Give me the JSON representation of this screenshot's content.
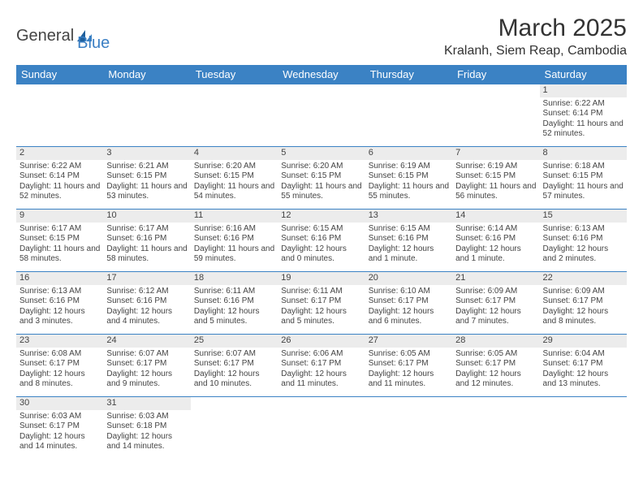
{
  "brand": {
    "general": "General",
    "blue": "Blue"
  },
  "title": "March 2025",
  "location": "Kralanh, Siem Reap, Cambodia",
  "colors": {
    "header_bg": "#3b82c4",
    "header_text": "#ffffff",
    "daynum_bg": "#ececec",
    "cell_border": "#3b82c4",
    "text": "#444444",
    "page_bg": "#ffffff"
  },
  "day_headers": [
    "Sunday",
    "Monday",
    "Tuesday",
    "Wednesday",
    "Thursday",
    "Friday",
    "Saturday"
  ],
  "weeks": [
    [
      null,
      null,
      null,
      null,
      null,
      null,
      {
        "n": "1",
        "sr": "6:22 AM",
        "ss": "6:14 PM",
        "dl": "11 hours and 52 minutes."
      }
    ],
    [
      {
        "n": "2",
        "sr": "6:22 AM",
        "ss": "6:14 PM",
        "dl": "11 hours and 52 minutes."
      },
      {
        "n": "3",
        "sr": "6:21 AM",
        "ss": "6:15 PM",
        "dl": "11 hours and 53 minutes."
      },
      {
        "n": "4",
        "sr": "6:20 AM",
        "ss": "6:15 PM",
        "dl": "11 hours and 54 minutes."
      },
      {
        "n": "5",
        "sr": "6:20 AM",
        "ss": "6:15 PM",
        "dl": "11 hours and 55 minutes."
      },
      {
        "n": "6",
        "sr": "6:19 AM",
        "ss": "6:15 PM",
        "dl": "11 hours and 55 minutes."
      },
      {
        "n": "7",
        "sr": "6:19 AM",
        "ss": "6:15 PM",
        "dl": "11 hours and 56 minutes."
      },
      {
        "n": "8",
        "sr": "6:18 AM",
        "ss": "6:15 PM",
        "dl": "11 hours and 57 minutes."
      }
    ],
    [
      {
        "n": "9",
        "sr": "6:17 AM",
        "ss": "6:15 PM",
        "dl": "11 hours and 58 minutes."
      },
      {
        "n": "10",
        "sr": "6:17 AM",
        "ss": "6:16 PM",
        "dl": "11 hours and 58 minutes."
      },
      {
        "n": "11",
        "sr": "6:16 AM",
        "ss": "6:16 PM",
        "dl": "11 hours and 59 minutes."
      },
      {
        "n": "12",
        "sr": "6:15 AM",
        "ss": "6:16 PM",
        "dl": "12 hours and 0 minutes."
      },
      {
        "n": "13",
        "sr": "6:15 AM",
        "ss": "6:16 PM",
        "dl": "12 hours and 1 minute."
      },
      {
        "n": "14",
        "sr": "6:14 AM",
        "ss": "6:16 PM",
        "dl": "12 hours and 1 minute."
      },
      {
        "n": "15",
        "sr": "6:13 AM",
        "ss": "6:16 PM",
        "dl": "12 hours and 2 minutes."
      }
    ],
    [
      {
        "n": "16",
        "sr": "6:13 AM",
        "ss": "6:16 PM",
        "dl": "12 hours and 3 minutes."
      },
      {
        "n": "17",
        "sr": "6:12 AM",
        "ss": "6:16 PM",
        "dl": "12 hours and 4 minutes."
      },
      {
        "n": "18",
        "sr": "6:11 AM",
        "ss": "6:16 PM",
        "dl": "12 hours and 5 minutes."
      },
      {
        "n": "19",
        "sr": "6:11 AM",
        "ss": "6:17 PM",
        "dl": "12 hours and 5 minutes."
      },
      {
        "n": "20",
        "sr": "6:10 AM",
        "ss": "6:17 PM",
        "dl": "12 hours and 6 minutes."
      },
      {
        "n": "21",
        "sr": "6:09 AM",
        "ss": "6:17 PM",
        "dl": "12 hours and 7 minutes."
      },
      {
        "n": "22",
        "sr": "6:09 AM",
        "ss": "6:17 PM",
        "dl": "12 hours and 8 minutes."
      }
    ],
    [
      {
        "n": "23",
        "sr": "6:08 AM",
        "ss": "6:17 PM",
        "dl": "12 hours and 8 minutes."
      },
      {
        "n": "24",
        "sr": "6:07 AM",
        "ss": "6:17 PM",
        "dl": "12 hours and 9 minutes."
      },
      {
        "n": "25",
        "sr": "6:07 AM",
        "ss": "6:17 PM",
        "dl": "12 hours and 10 minutes."
      },
      {
        "n": "26",
        "sr": "6:06 AM",
        "ss": "6:17 PM",
        "dl": "12 hours and 11 minutes."
      },
      {
        "n": "27",
        "sr": "6:05 AM",
        "ss": "6:17 PM",
        "dl": "12 hours and 11 minutes."
      },
      {
        "n": "28",
        "sr": "6:05 AM",
        "ss": "6:17 PM",
        "dl": "12 hours and 12 minutes."
      },
      {
        "n": "29",
        "sr": "6:04 AM",
        "ss": "6:17 PM",
        "dl": "12 hours and 13 minutes."
      }
    ],
    [
      {
        "n": "30",
        "sr": "6:03 AM",
        "ss": "6:17 PM",
        "dl": "12 hours and 14 minutes."
      },
      {
        "n": "31",
        "sr": "6:03 AM",
        "ss": "6:18 PM",
        "dl": "12 hours and 14 minutes."
      },
      null,
      null,
      null,
      null,
      null
    ]
  ],
  "labels": {
    "sunrise": "Sunrise:",
    "sunset": "Sunset:",
    "daylight": "Daylight:"
  }
}
